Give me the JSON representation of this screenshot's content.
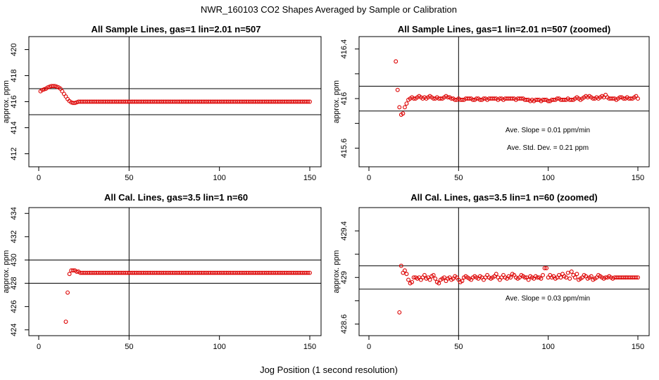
{
  "title": "NWR_160103  CO2 Shapes Averaged by Sample or Calibration",
  "xlabel": "Jog Position (1 second resolution)",
  "colors": {
    "points": "#dd0000",
    "lines": "#000000",
    "background": "#ffffff"
  },
  "chart_data": [
    {
      "type": "scatter",
      "title": "All Sample Lines, gas=1 lin=2.01 n=507",
      "ylabel": "approx. ppm",
      "xlim": [
        0,
        150
      ],
      "ylim": [
        411,
        421
      ],
      "xticks": [
        0,
        50,
        100,
        150
      ],
      "yticks": [
        412,
        414,
        416,
        418,
        420
      ],
      "hlines": [
        417,
        415
      ],
      "vline": 50,
      "annotations": [],
      "series": [
        {
          "x_start": 1,
          "x_step": 1,
          "y": [
            416.8,
            416.9,
            416.95,
            417.0,
            417.1,
            417.15,
            417.2,
            417.2,
            417.2,
            417.15,
            417.1,
            417.0,
            416.8,
            416.6,
            416.4,
            416.2,
            416.05,
            415.95,
            415.9,
            415.9,
            415.95,
            416.0,
            416.0,
            416.0,
            416.0,
            416.0,
            416.0,
            416.0,
            416.0,
            416.0,
            416.0,
            416.0,
            416.0,
            416.0,
            416.0,
            416.0,
            416.0,
            416.0,
            416.0,
            416.0,
            416.0,
            416.0,
            416.0,
            416.0,
            416.0,
            416.0,
            416.0,
            416.0,
            416.0,
            416.0,
            416.0,
            416.0,
            416.0,
            416.0,
            416.0,
            416.0,
            416.0,
            416.0,
            416.0,
            416.0,
            416.0,
            416.0,
            416.0,
            416.0,
            416.0,
            416.0,
            416.0,
            416.0,
            416.0,
            416.0,
            416.0,
            416.0,
            416.0,
            416.0,
            416.0,
            416.0,
            416.0,
            416.0,
            416.0,
            416.0,
            416.0,
            416.0,
            416.0,
            416.0,
            416.0,
            416.0,
            416.0,
            416.0,
            416.0,
            416.0,
            416.0,
            416.0,
            416.0,
            416.0,
            416.0,
            416.0,
            416.0,
            416.0,
            416.0,
            416.0,
            416.0,
            416.0,
            416.0,
            416.0,
            416.0,
            416.0,
            416.0,
            416.0,
            416.0,
            416.0,
            416.0,
            416.0,
            416.0,
            416.0,
            416.0,
            416.0,
            416.0,
            416.0,
            416.0,
            416.0,
            416.0,
            416.0,
            416.0,
            416.0,
            416.0,
            416.0,
            416.0,
            416.0,
            416.0,
            416.0,
            416.0,
            416.0,
            416.0,
            416.0,
            416.0,
            416.0,
            416.0,
            416.0,
            416.0,
            416.0,
            416.0,
            416.0,
            416.0,
            416.0,
            416.0,
            416.0,
            416.0,
            416.0,
            416.0,
            416.0
          ]
        }
      ]
    },
    {
      "type": "scatter",
      "title": "All Sample Lines, gas=1 lin=2.01 n=507 (zoomed)",
      "ylabel": "approx. ppm",
      "xlim": [
        0,
        150
      ],
      "ylim": [
        415.45,
        416.5
      ],
      "xticks": [
        0,
        50,
        100,
        150
      ],
      "yticks": [
        415.6,
        416.0,
        416.4
      ],
      "yticks_minor": [
        415.8,
        416.2
      ],
      "hlines": [
        416.1,
        415.9
      ],
      "vline": 50,
      "annotations": [
        "Ave. Slope =  0.01  ppm/min",
        "Ave. Std. Dev. =  0.21  ppm"
      ],
      "series": [
        {
          "x_start": 15,
          "x_step": 1,
          "y": [
            416.3,
            416.07,
            415.93,
            415.87,
            415.88,
            415.93,
            415.96,
            415.99,
            416.0,
            416.01,
            416.0,
            416.0,
            416.01,
            416.02,
            416.01,
            416.0,
            416.01,
            416.0,
            416.01,
            416.02,
            416.01,
            416.0,
            416.0,
            416.01,
            416.0,
            416.0,
            416.0,
            416.01,
            416.02,
            416.01,
            416.01,
            416.0,
            416.0,
            415.99,
            415.99,
            416.0,
            415.99,
            415.99,
            415.99,
            416.0,
            416.0,
            416.0,
            416.0,
            415.99,
            415.99,
            416.0,
            416.0,
            415.99,
            415.99,
            416.0,
            416.0,
            415.99,
            416.0,
            416.0,
            416.0,
            416.0,
            416.0,
            415.99,
            416.0,
            416.0,
            415.99,
            416.0,
            416.0,
            416.0,
            416.0,
            416.0,
            416.0,
            415.99,
            416.0,
            416.0,
            416.0,
            416.0,
            415.99,
            415.99,
            415.99,
            415.98,
            415.99,
            415.98,
            415.99,
            415.99,
            415.99,
            415.98,
            415.99,
            415.99,
            415.99,
            415.98,
            415.98,
            415.99,
            415.99,
            415.99,
            416.0,
            416.0,
            415.99,
            415.99,
            415.99,
            415.99,
            416.0,
            415.99,
            415.99,
            415.99,
            416.0,
            416.01,
            416.0,
            415.99,
            416.0,
            416.01,
            416.02,
            416.01,
            416.02,
            416.01,
            416.0,
            416.0,
            416.01,
            416.0,
            416.01,
            416.02,
            416.01,
            416.03,
            416.01,
            416.0,
            416.0,
            416.0,
            416.0,
            415.99,
            416.0,
            416.01,
            416.01,
            416.0,
            416.0,
            416.01,
            416.0,
            416.0,
            416.0,
            416.01,
            416.02,
            416.0,
            415.99,
            416.0,
            415.99,
            415.99,
            416.0,
            415.99,
            415.99,
            416.0,
            416.0,
            416.0,
            416.0,
            415.99,
            415.99,
            415.99,
            415.99,
            416.0,
            416.0,
            416.0,
            416.0,
            416.01,
            416.01,
            416.01,
            416.0,
            416.0,
            416.0,
            416.0,
            416.0,
            416.0,
            416.0,
            416.0,
            416.0,
            416.0,
            416.0,
            416.0,
            416.0,
            416.0,
            416.0,
            416.0,
            416.0,
            416.0,
            416.0,
            416.0,
            416.0,
            416.0,
            416.0,
            416.0,
            416.0,
            416.0,
            416.0,
            416.0,
            416.0,
            416.0,
            416.0,
            416.0,
            416.0,
            416.0,
            416.0,
            416.0,
            416.0,
            416.0,
            416.0,
            416.0,
            416.0,
            416.0,
            416.0
          ]
        }
      ]
    },
    {
      "type": "scatter",
      "title": "All Cal. Lines, gas=3.5 lin=1 n=60",
      "ylabel": "approx. ppm",
      "xlim": [
        0,
        150
      ],
      "ylim": [
        423.5,
        434.5
      ],
      "xticks": [
        0,
        50,
        100,
        150
      ],
      "yticks": [
        424,
        426,
        428,
        430,
        432,
        434
      ],
      "hlines": [
        430,
        428
      ],
      "vline": 50,
      "annotations": [],
      "series": [
        {
          "x_start": 15,
          "x_step": 1,
          "y": [
            424.7,
            427.2,
            428.8,
            429.1,
            429.1,
            429.1,
            429.0,
            429.0,
            428.9,
            428.9,
            428.9,
            428.9,
            428.9,
            428.9,
            428.9,
            428.9,
            428.9,
            428.9,
            428.9,
            428.9,
            428.9,
            428.9,
            428.9,
            428.9,
            428.9,
            428.9,
            428.9,
            428.9,
            428.9,
            428.9,
            428.9,
            428.9,
            428.9,
            428.9,
            428.9,
            428.9,
            428.9,
            428.9,
            428.9,
            428.9,
            428.9,
            428.9,
            428.9,
            428.9,
            428.9,
            428.9,
            428.9,
            428.9,
            428.9,
            428.9,
            428.9,
            428.9,
            428.9,
            428.9,
            428.9,
            428.9,
            428.9,
            428.9,
            428.9,
            428.9,
            428.9,
            428.9,
            428.9,
            428.9,
            428.9,
            428.9,
            428.9,
            428.9,
            428.9,
            428.9,
            428.9,
            428.9,
            428.9,
            428.9,
            428.9,
            428.9,
            428.9,
            428.9,
            428.9,
            428.9,
            428.9,
            428.9,
            428.9,
            428.9,
            428.9,
            428.9,
            428.9,
            428.9,
            428.9,
            428.9,
            428.9,
            428.9,
            428.9,
            428.9,
            428.9,
            428.9,
            428.9,
            428.9,
            428.9,
            428.9,
            428.9,
            428.9,
            428.9,
            428.9,
            428.9,
            428.9,
            428.9,
            428.9,
            428.9,
            428.9,
            428.9,
            428.9,
            428.9,
            428.9,
            428.9,
            428.9,
            428.9,
            428.9,
            428.9,
            428.9,
            428.9,
            428.9,
            428.9,
            428.9,
            428.9,
            428.9,
            428.9,
            428.9,
            428.9,
            428.9,
            428.9,
            428.9,
            428.9,
            428.9,
            428.9,
            428.9
          ]
        }
      ]
    },
    {
      "type": "scatter",
      "title": "All Cal. Lines, gas=3.5 lin=1 n=60 (zoomed)",
      "ylabel": "approx. ppm",
      "xlim": [
        0,
        150
      ],
      "ylim": [
        428.5,
        429.6
      ],
      "xticks": [
        0,
        50,
        100,
        150
      ],
      "yticks": [
        428.6,
        429.0,
        429.4
      ],
      "yticks_minor": [
        428.8,
        429.2
      ],
      "hlines": [
        429.1,
        428.9
      ],
      "vline": 50,
      "annotations": [
        "Ave. Slope =  0.03  ppm/min"
      ],
      "series": [
        {
          "x_start": 17,
          "x_step": 1,
          "y": [
            428.7,
            429.1,
            429.04,
            429.06,
            429.03,
            428.98,
            428.95,
            428.96,
            429.0,
            429.0,
            428.99,
            429.0,
            428.98,
            429.0,
            429.02,
            428.99,
            429.0,
            428.98,
            429.01,
            429.02,
            428.99,
            428.96,
            428.95,
            428.98,
            428.99,
            429.0,
            428.97,
            428.99,
            429.0,
            428.98,
            428.99,
            429.01,
            429.0,
            428.98,
            428.96,
            428.97,
            429.0,
            429.01,
            429.0,
            428.99,
            428.98,
            429.0,
            429.01,
            429.0,
            428.99,
            429.01,
            429.0,
            428.98,
            429.0,
            429.02,
            429.0,
            428.99,
            429.0,
            429.01,
            429.03,
            429.0,
            428.98,
            429.0,
            429.02,
            429.0,
            428.99,
            429.01,
            429.0,
            429.03,
            429.02,
            429.0,
            428.99,
            429.0,
            429.02,
            429.01,
            429.0,
            429.0,
            428.98,
            429.01,
            429.0,
            428.99,
            429.01,
            429.0,
            429.0,
            428.99,
            429.02,
            429.08,
            429.08,
            429.0,
            429.02,
            429.0,
            429.01,
            428.99,
            429.0,
            429.02,
            429.0,
            429.03,
            429.01,
            429.0,
            429.04,
            428.99,
            429.05,
            429.02,
            429.0,
            429.03,
            428.98,
            428.99,
            429.0,
            429.02,
            429.01,
            428.99,
            429.0,
            429.01,
            428.98,
            428.99,
            429.0,
            429.02,
            429.01,
            429.0,
            428.99,
            429.0,
            429.0,
            429.01,
            429.0,
            428.99,
            429.0,
            429.0,
            429.0,
            429.0,
            429.0,
            429.0,
            429.0,
            429.0,
            429.0,
            429.0,
            429.0,
            429.0,
            429.0,
            429.0
          ]
        }
      ]
    }
  ]
}
